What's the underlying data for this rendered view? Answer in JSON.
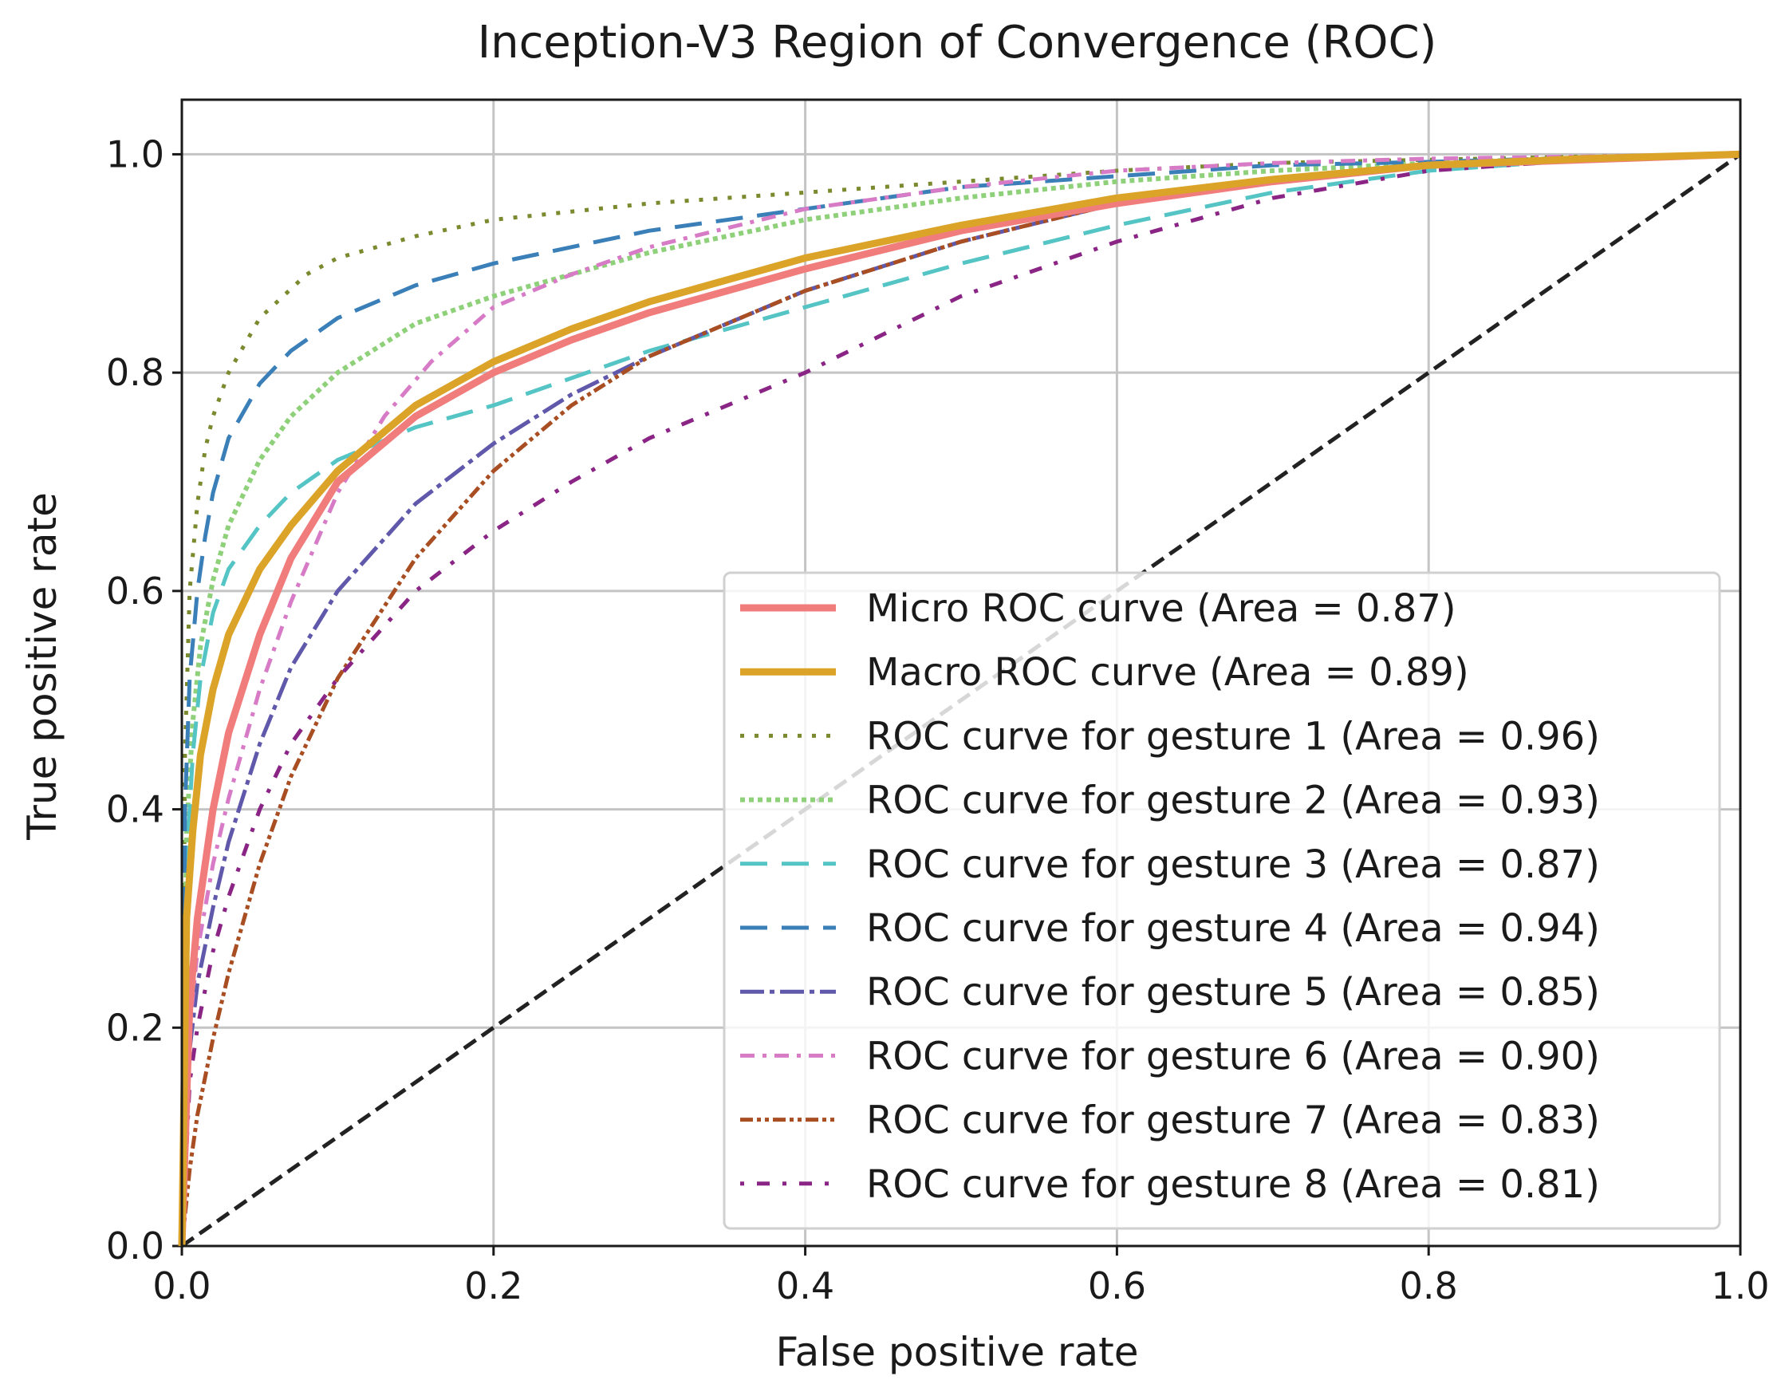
{
  "chart_data": {
    "type": "line",
    "title": "Inception-V3 Region of Convergence (ROC)",
    "xlabel": "False positive rate",
    "ylabel": "True positive rate",
    "xlim": [
      0.0,
      1.0
    ],
    "ylim": [
      0.0,
      1.05
    ],
    "xticks": [
      "0.0",
      "0.2",
      "0.4",
      "0.6",
      "0.8",
      "1.0"
    ],
    "yticks": [
      "0.0",
      "0.2",
      "0.4",
      "0.6",
      "0.8",
      "1.0"
    ],
    "grid": true,
    "legend_position": "lower-right",
    "reference_line": {
      "x": [
        0.0,
        1.0
      ],
      "y": [
        0.0,
        1.0
      ],
      "color": "#222222"
    },
    "series": [
      {
        "name": "Micro ROC curve (Area = 0.87)",
        "color": "#f07c7c",
        "style": "solid-thick",
        "x": [
          0.0,
          0.005,
          0.01,
          0.02,
          0.03,
          0.05,
          0.07,
          0.1,
          0.15,
          0.2,
          0.25,
          0.3,
          0.4,
          0.5,
          0.6,
          0.7,
          0.8,
          0.9,
          1.0
        ],
        "y": [
          0.0,
          0.22,
          0.3,
          0.4,
          0.47,
          0.56,
          0.63,
          0.7,
          0.76,
          0.8,
          0.83,
          0.855,
          0.895,
          0.93,
          0.955,
          0.975,
          0.99,
          0.995,
          1.0
        ]
      },
      {
        "name": "Macro ROC curve (Area = 0.89)",
        "color": "#dba429",
        "style": "solid-thick",
        "x": [
          0.0,
          0.003,
          0.007,
          0.012,
          0.02,
          0.03,
          0.05,
          0.07,
          0.1,
          0.15,
          0.2,
          0.25,
          0.3,
          0.4,
          0.5,
          0.6,
          0.7,
          0.8,
          0.9,
          1.0
        ],
        "y": [
          0.0,
          0.3,
          0.38,
          0.45,
          0.51,
          0.56,
          0.62,
          0.66,
          0.71,
          0.77,
          0.81,
          0.84,
          0.865,
          0.905,
          0.935,
          0.96,
          0.977,
          0.99,
          0.996,
          1.0
        ]
      },
      {
        "name": "ROC curve for gesture 1 (Area = 0.96)",
        "color": "#7a8a2e",
        "style": "dotted",
        "x": [
          0.0,
          0.002,
          0.005,
          0.01,
          0.015,
          0.02,
          0.03,
          0.05,
          0.08,
          0.1,
          0.15,
          0.2,
          0.3,
          0.4,
          0.5,
          0.6,
          0.7,
          0.8,
          0.9,
          1.0
        ],
        "y": [
          0.0,
          0.45,
          0.6,
          0.68,
          0.73,
          0.76,
          0.8,
          0.85,
          0.89,
          0.905,
          0.925,
          0.94,
          0.955,
          0.965,
          0.975,
          0.985,
          0.992,
          0.995,
          0.998,
          1.0
        ]
      },
      {
        "name": "ROC curve for gesture 2 (Area = 0.93)",
        "color": "#8fd17a",
        "style": "dotted-thick",
        "x": [
          0.0,
          0.003,
          0.007,
          0.012,
          0.02,
          0.03,
          0.05,
          0.07,
          0.1,
          0.15,
          0.2,
          0.3,
          0.4,
          0.5,
          0.6,
          0.7,
          0.8,
          0.9,
          1.0
        ],
        "y": [
          0.0,
          0.38,
          0.48,
          0.55,
          0.61,
          0.66,
          0.72,
          0.76,
          0.8,
          0.845,
          0.87,
          0.91,
          0.94,
          0.96,
          0.975,
          0.985,
          0.992,
          0.997,
          1.0
        ]
      },
      {
        "name": "ROC curve for gesture 3 (Area = 0.87)",
        "color": "#55c4c4",
        "style": "dashed-long",
        "x": [
          0.0,
          0.003,
          0.007,
          0.012,
          0.02,
          0.03,
          0.05,
          0.07,
          0.1,
          0.15,
          0.2,
          0.25,
          0.3,
          0.4,
          0.5,
          0.6,
          0.7,
          0.8,
          0.9,
          1.0
        ],
        "y": [
          0.0,
          0.35,
          0.45,
          0.52,
          0.58,
          0.62,
          0.66,
          0.69,
          0.72,
          0.75,
          0.77,
          0.795,
          0.82,
          0.86,
          0.9,
          0.935,
          0.965,
          0.985,
          0.995,
          1.0
        ]
      },
      {
        "name": "ROC curve for gesture 4 (Area = 0.94)",
        "color": "#3a7fb8",
        "style": "dashed-long",
        "x": [
          0.0,
          0.002,
          0.005,
          0.01,
          0.015,
          0.02,
          0.03,
          0.05,
          0.07,
          0.1,
          0.15,
          0.2,
          0.3,
          0.4,
          0.5,
          0.6,
          0.7,
          0.8,
          0.9,
          1.0
        ],
        "y": [
          0.0,
          0.4,
          0.52,
          0.6,
          0.65,
          0.69,
          0.74,
          0.79,
          0.82,
          0.85,
          0.88,
          0.9,
          0.93,
          0.95,
          0.97,
          0.98,
          0.99,
          0.993,
          0.997,
          1.0
        ]
      },
      {
        "name": "ROC curve for gesture 5 (Area = 0.85)",
        "color": "#6058aa",
        "style": "dash-dot-long",
        "x": [
          0.0,
          0.005,
          0.01,
          0.02,
          0.03,
          0.05,
          0.07,
          0.1,
          0.15,
          0.2,
          0.25,
          0.3,
          0.4,
          0.5,
          0.6,
          0.7,
          0.8,
          0.9,
          1.0
        ],
        "y": [
          0.0,
          0.18,
          0.24,
          0.31,
          0.37,
          0.46,
          0.53,
          0.6,
          0.68,
          0.735,
          0.78,
          0.815,
          0.875,
          0.92,
          0.955,
          0.975,
          0.99,
          0.996,
          1.0
        ]
      },
      {
        "name": "ROC curve for gesture 6 (Area = 0.90)",
        "color": "#d77bc6",
        "style": "dash-dot",
        "x": [
          0.0,
          0.005,
          0.01,
          0.02,
          0.03,
          0.05,
          0.07,
          0.1,
          0.13,
          0.16,
          0.2,
          0.25,
          0.3,
          0.4,
          0.5,
          0.6,
          0.7,
          0.8,
          0.9,
          1.0
        ],
        "y": [
          0.0,
          0.2,
          0.27,
          0.35,
          0.41,
          0.51,
          0.59,
          0.69,
          0.76,
          0.81,
          0.86,
          0.89,
          0.915,
          0.95,
          0.97,
          0.985,
          0.992,
          0.996,
          0.998,
          1.0
        ]
      },
      {
        "name": "ROC curve for gesture 7 (Area = 0.83)",
        "color": "#a84e22",
        "style": "dash-dot-dot",
        "x": [
          0.0,
          0.005,
          0.01,
          0.02,
          0.03,
          0.05,
          0.07,
          0.1,
          0.15,
          0.2,
          0.25,
          0.3,
          0.4,
          0.5,
          0.6,
          0.7,
          0.8,
          0.9,
          1.0
        ],
        "y": [
          0.0,
          0.07,
          0.12,
          0.19,
          0.25,
          0.35,
          0.43,
          0.52,
          0.63,
          0.71,
          0.77,
          0.815,
          0.875,
          0.92,
          0.955,
          0.978,
          0.99,
          0.996,
          1.0
        ]
      },
      {
        "name": "ROC curve for gesture 8 (Area = 0.81)",
        "color": "#8a2586",
        "style": "dot-dash-sparse",
        "x": [
          0.0,
          0.005,
          0.01,
          0.02,
          0.03,
          0.05,
          0.07,
          0.1,
          0.15,
          0.2,
          0.25,
          0.3,
          0.4,
          0.5,
          0.6,
          0.7,
          0.8,
          0.9,
          1.0
        ],
        "y": [
          0.0,
          0.15,
          0.2,
          0.27,
          0.32,
          0.4,
          0.46,
          0.52,
          0.6,
          0.655,
          0.7,
          0.74,
          0.8,
          0.87,
          0.92,
          0.96,
          0.985,
          0.995,
          1.0
        ]
      }
    ]
  }
}
